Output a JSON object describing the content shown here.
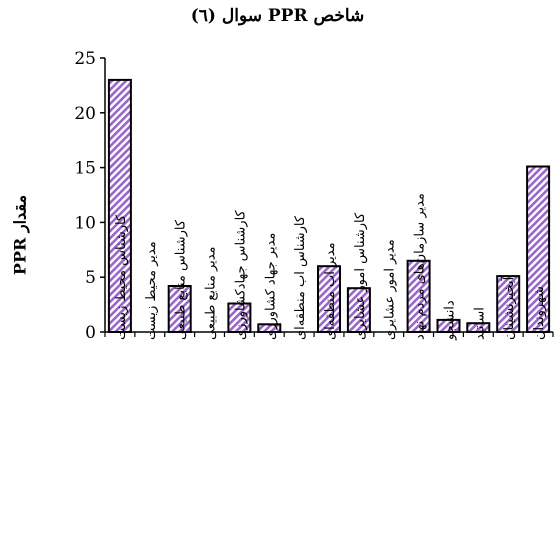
{
  "chart_data": {
    "type": "bar",
    "title": "شاخص PPR سوال (٦)",
    "ylabel": "مقدار PPR",
    "xlabel": "",
    "ylim": [
      0,
      25
    ],
    "yticks": [
      0,
      5,
      10,
      15,
      20,
      25
    ],
    "categories": [
      "کارشناس محیط زیست",
      "مدیر محیط زیست",
      "کارشناس منابع طبیعی",
      "مدیر منابع طبیعی",
      "کارشناس جهادکشاورزی",
      "مدیر جهاد کشاورزی",
      "کارشناس اب منطقه‌ای",
      "مدیر اب منطقه‌ای",
      "کارشناس امور عشایری",
      "مدیر امور عشایری",
      "مدیر سازمان‌های مردم نهاد",
      "دانشجو",
      "اساتید",
      "آبخیزنشینان",
      "شهروندان"
    ],
    "values": [
      23,
      0,
      4.2,
      0,
      2.6,
      0.7,
      0,
      6,
      4,
      0,
      6.5,
      1.1,
      0.8,
      5.1,
      15.1
    ],
    "colors": {
      "bar_fill": "#9966cc",
      "bar_stroke": "#000000",
      "axis": "#000000"
    },
    "grid": false,
    "legend": "none"
  }
}
